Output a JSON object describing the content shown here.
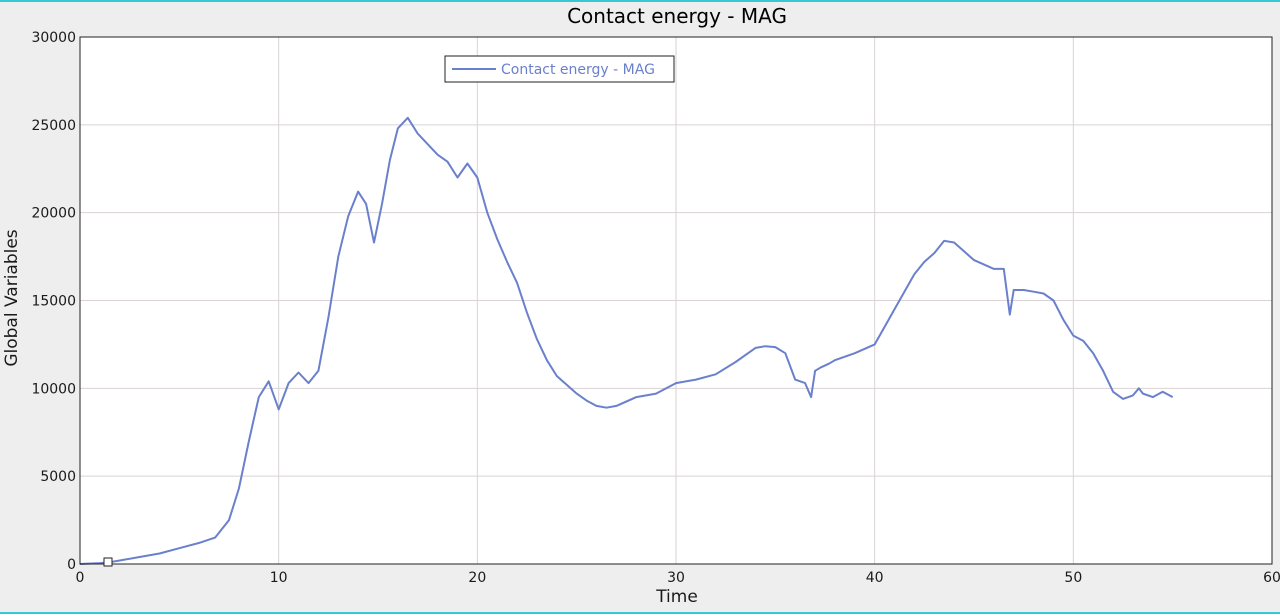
{
  "chart_data": {
    "type": "line",
    "title": "Contact energy - MAG",
    "xlabel": "Time",
    "ylabel": "Global Variables",
    "xlim": [
      0,
      60
    ],
    "ylim": [
      0,
      30000
    ],
    "xticks": [
      0,
      10,
      20,
      30,
      40,
      50,
      60
    ],
    "yticks": [
      0,
      5000,
      10000,
      15000,
      20000,
      25000,
      30000
    ],
    "grid": true,
    "legend": "top-center",
    "colors": {
      "series": "#6a80cc",
      "grid": "#d9d2d6",
      "frame": "#222222"
    },
    "series": [
      {
        "name": "Contact energy - MAG",
        "x": [
          0,
          1,
          1.5,
          2,
          3,
          4,
          5,
          6,
          6.8,
          7.5,
          8,
          8.5,
          9,
          9.5,
          10,
          10.5,
          11,
          11.5,
          12,
          12.5,
          13,
          13.5,
          14,
          14.4,
          14.8,
          15.2,
          15.6,
          16,
          16.5,
          17,
          17.5,
          18,
          18.5,
          19,
          19.5,
          20,
          20.5,
          21,
          21.5,
          22,
          22.5,
          23,
          23.5,
          24,
          24.5,
          25,
          25.5,
          26,
          26.5,
          27,
          28,
          29,
          30,
          31,
          32,
          33,
          34,
          34.5,
          35,
          35.5,
          36,
          36.5,
          36.8,
          37,
          37.3,
          37.7,
          38,
          39,
          40,
          41,
          42,
          42.5,
          43,
          43.5,
          44,
          45,
          46,
          46.5,
          46.8,
          47,
          47.5,
          48,
          48.5,
          49,
          49.5,
          50,
          50.5,
          51,
          51.5,
          52,
          52.5,
          53,
          53.3,
          53.5,
          54,
          54.5,
          55
        ],
        "values": [
          0,
          50,
          100,
          200,
          400,
          600,
          900,
          1200,
          1500,
          2500,
          4300,
          7000,
          9500,
          10400,
          8800,
          10300,
          10900,
          10300,
          11000,
          14000,
          17500,
          19800,
          21200,
          20500,
          18300,
          20500,
          23000,
          24800,
          25400,
          24500,
          23900,
          23300,
          22900,
          22000,
          22800,
          22000,
          20000,
          18500,
          17200,
          16000,
          14300,
          12800,
          11600,
          10700,
          10200,
          9700,
          9300,
          9000,
          8900,
          9000,
          9500,
          9700,
          10300,
          10500,
          10800,
          11500,
          12300,
          12400,
          12350,
          12000,
          10500,
          10300,
          9500,
          11000,
          11200,
          11400,
          11600,
          12000,
          12500,
          14500,
          16500,
          17200,
          17700,
          18400,
          18300,
          17300,
          16800,
          16800,
          14200,
          15600,
          15600,
          15500,
          15400,
          15000,
          13900,
          13000,
          12700,
          12000,
          11000,
          9800,
          9400,
          9600,
          10000,
          9700,
          9500,
          9800,
          9500
        ]
      }
    ]
  }
}
